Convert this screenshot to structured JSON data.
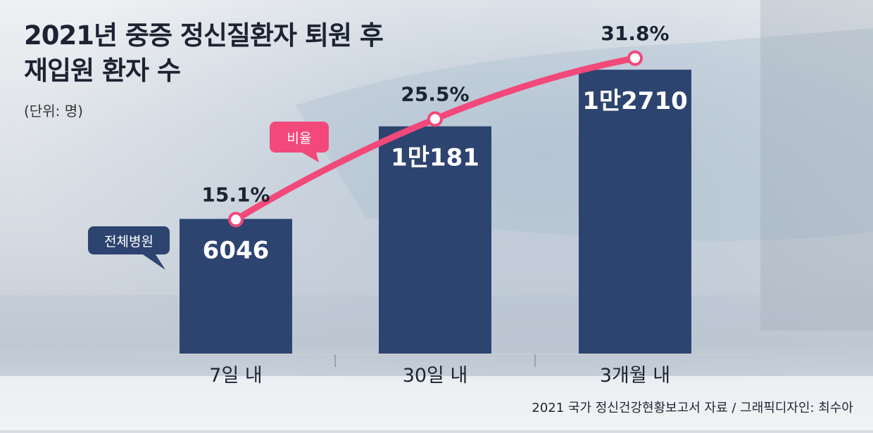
{
  "title_line1": "2021년 중증 정신질환자 퇴원 후",
  "title_line2": "재입원 환자 수",
  "unit": "(단위: 명)",
  "source": "2021 국가 정신건강현황보고서 자료 / 그래픽디자인: 최수아",
  "legend_bar": "전체병원",
  "legend_line": "비율",
  "colors": {
    "bar": "#2d4470",
    "line": "#f2487a",
    "label_white": "#ffffff",
    "text_dark": "#1c2333"
  },
  "chart_data": {
    "type": "bar",
    "categories": [
      "7일 내",
      "30일 내",
      "3개월 내"
    ],
    "series": [
      {
        "name": "전체병원",
        "type": "bar",
        "values": [
          6046,
          10181,
          12710
        ],
        "labels": [
          "6046",
          "1만181",
          "1만2710"
        ]
      },
      {
        "name": "비율",
        "type": "line",
        "values": [
          15.1,
          25.5,
          31.8
        ],
        "labels": [
          "15.1%",
          "25.5%",
          "31.8%"
        ]
      }
    ],
    "ylim": [
      0,
      13500
    ],
    "y2lim": [
      0,
      40
    ],
    "grid": false,
    "axis_ticks": false
  }
}
